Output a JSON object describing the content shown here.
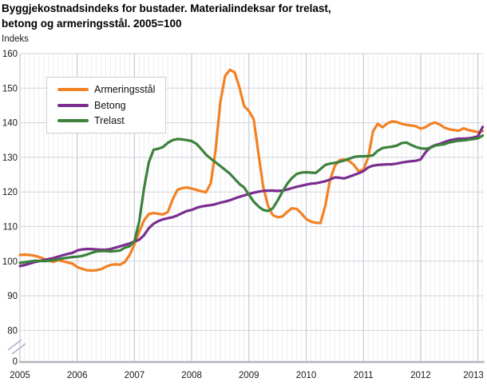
{
  "title": {
    "line1": "Byggjekostnadsindeks for bustader. Materialindeksar for trelast,",
    "line2": "betong og armeringsstål. 2005=100",
    "unit": "Indeks"
  },
  "chart_data": {
    "type": "line",
    "title": "Byggjekostnadsindeks for bustader. Materialindeksar for trelast, betong og armeringsstål. 2005=100",
    "ylabel": "Indeks",
    "xlabel": "",
    "x_tick_labels": [
      "2005",
      "2006",
      "2007",
      "2008",
      "2009",
      "2010",
      "2011",
      "2012",
      "2013"
    ],
    "y_ticks": [
      0,
      80,
      90,
      100,
      110,
      120,
      130,
      140,
      150,
      160
    ],
    "ylim_display": [
      80,
      160
    ],
    "axis_break_between": [
      0,
      80
    ],
    "grid": "monthly vertical minor, yearly vertical major, horizontal every 10",
    "legend_position": "top-left inside plot",
    "x_start": "2005-01",
    "x_end": "2013-02",
    "series": [
      {
        "name": "Armeringsstål",
        "color": "#F28123",
        "values": [
          101.8,
          101.9,
          101.8,
          101.6,
          101.2,
          100.7,
          100.2,
          99.8,
          100.3,
          100.0,
          99.6,
          99.3,
          98.3,
          97.8,
          97.4,
          97.3,
          97.4,
          97.7,
          98.4,
          98.9,
          99.1,
          99.0,
          99.8,
          101.8,
          104.8,
          108.5,
          111.8,
          113.6,
          113.9,
          113.7,
          113.5,
          114.2,
          117.8,
          120.6,
          121.1,
          121.3,
          121.0,
          120.6,
          120.2,
          119.9,
          122.5,
          132.0,
          146.0,
          153.5,
          155.3,
          154.6,
          150.2,
          144.8,
          143.4,
          141.0,
          131.0,
          121.5,
          116.0,
          113.3,
          112.7,
          112.9,
          114.2,
          115.3,
          115.1,
          113.8,
          112.2,
          111.4,
          111.1,
          111.0,
          116.0,
          123.5,
          127.5,
          129.2,
          129.4,
          129.0,
          127.8,
          126.0,
          126.5,
          130.0,
          137.5,
          139.7,
          138.7,
          139.8,
          140.4,
          140.2,
          139.7,
          139.4,
          139.2,
          139.0,
          138.3,
          138.7,
          139.6,
          140.1,
          139.5,
          138.6,
          138.1,
          137.9,
          137.7,
          138.4,
          137.9,
          137.6,
          137.3,
          137.6
        ]
      },
      {
        "name": "Betong",
        "color": "#7B2E8F",
        "values": [
          98.6,
          98.9,
          99.3,
          99.7,
          100.0,
          100.3,
          100.6,
          100.9,
          101.3,
          101.7,
          102.1,
          102.4,
          103.1,
          103.4,
          103.5,
          103.5,
          103.4,
          103.3,
          103.3,
          103.5,
          103.9,
          104.3,
          104.7,
          105.1,
          105.7,
          106.2,
          107.5,
          109.5,
          110.8,
          111.6,
          112.1,
          112.4,
          112.7,
          113.2,
          113.9,
          114.5,
          114.8,
          115.4,
          115.8,
          116.0,
          116.2,
          116.5,
          116.9,
          117.2,
          117.6,
          118.1,
          118.6,
          119.0,
          119.4,
          119.8,
          120.1,
          120.3,
          120.4,
          120.4,
          120.3,
          120.4,
          120.7,
          121.1,
          121.5,
          121.8,
          122.1,
          122.4,
          122.5,
          122.8,
          123.1,
          123.6,
          124.2,
          124.1,
          123.9,
          124.4,
          124.9,
          125.4,
          126.0,
          127.1,
          127.6,
          127.8,
          127.9,
          128.0,
          128.0,
          128.2,
          128.5,
          128.7,
          128.9,
          129.0,
          129.4,
          131.4,
          132.9,
          133.5,
          133.9,
          134.4,
          134.9,
          135.2,
          135.4,
          135.4,
          135.5,
          135.7,
          136.1,
          138.8
        ]
      },
      {
        "name": "Trelast",
        "color": "#3C823C",
        "values": [
          99.5,
          99.7,
          99.9,
          100.1,
          100.1,
          100.0,
          100.1,
          100.3,
          100.5,
          100.8,
          101.0,
          101.2,
          101.3,
          101.5,
          101.9,
          102.4,
          102.8,
          102.9,
          102.9,
          102.8,
          102.9,
          103.1,
          103.9,
          104.3,
          105.8,
          111.5,
          121.0,
          128.5,
          132.2,
          132.5,
          133.0,
          134.2,
          135.0,
          135.3,
          135.2,
          135.0,
          134.7,
          133.9,
          132.4,
          130.8,
          129.6,
          128.6,
          127.5,
          126.4,
          125.3,
          123.8,
          122.3,
          121.3,
          119.2,
          117.2,
          115.8,
          114.8,
          114.5,
          115.3,
          117.5,
          120.0,
          122.3,
          124.0,
          125.2,
          125.6,
          125.7,
          125.6,
          125.5,
          126.6,
          127.8,
          128.2,
          128.4,
          128.7,
          129.1,
          129.6,
          130.1,
          130.3,
          130.3,
          130.4,
          130.6,
          131.9,
          132.7,
          132.9,
          133.1,
          133.4,
          134.1,
          134.3,
          133.6,
          133.0,
          132.6,
          132.5,
          132.7,
          133.4,
          133.6,
          133.8,
          134.3,
          134.6,
          134.8,
          134.9,
          135.1,
          135.3,
          135.5,
          136.3
        ]
      }
    ]
  },
  "style": {
    "grid_minor": "#ecedf2",
    "grid_major": "#c7c9d3",
    "grid_horizontal": "#d4d5dc",
    "axis_line": "#b3b3bb",
    "break_mark": "#b9bdd3",
    "tick_text": "#1a1a1a"
  }
}
